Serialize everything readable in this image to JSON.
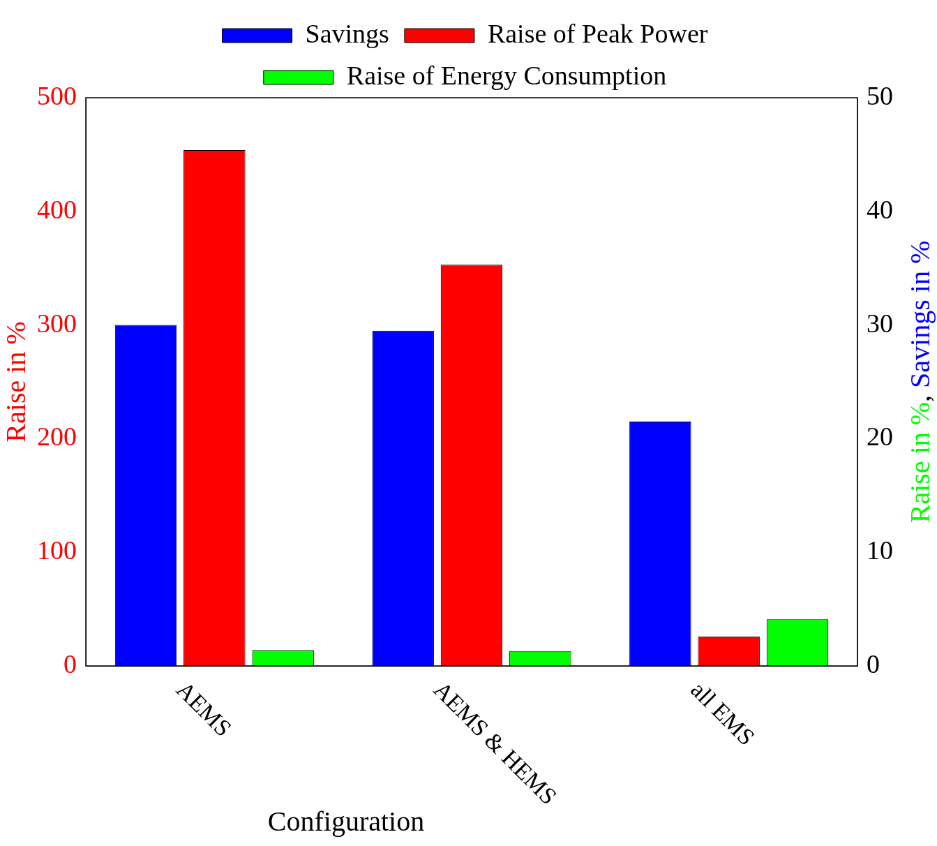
{
  "chart_data": {
    "type": "bar",
    "xlabel": "Configuration",
    "ylabel": "Raise in %",
    "y2label": "Raise in %, Savings in %",
    "categories": [
      "AEMS",
      "AEMS & HEMS",
      "all EMS"
    ],
    "series": [
      {
        "name": "Savings",
        "color": "#0000ff",
        "values": [
          30,
          29.5,
          21.5
        ],
        "axis": "y2"
      },
      {
        "name": "Raise of Peak Power",
        "color": "#ff0000",
        "values": [
          454,
          353,
          26
        ],
        "axis": "y"
      },
      {
        "name": "Raise of Energy Consumption",
        "color": "#00ff00",
        "values": [
          1.4,
          1.3,
          4.1
        ],
        "axis": "y2"
      }
    ],
    "ylim": [
      0,
      500
    ],
    "yticks": [
      0,
      100,
      200,
      300,
      400,
      500
    ],
    "y2lim": [
      0,
      50
    ],
    "y2ticks": [
      0,
      10,
      20,
      30,
      40,
      50
    ],
    "grid": false,
    "legend": "top"
  }
}
